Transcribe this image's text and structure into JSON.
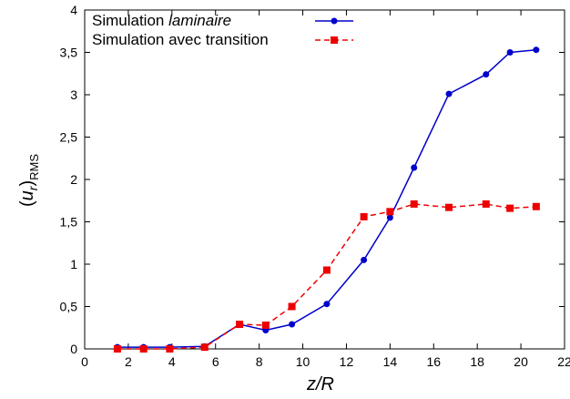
{
  "chart_data": {
    "type": "line",
    "xlabel": "z/R",
    "ylabel": "(u_r)_RMS",
    "xlim": [
      0,
      22
    ],
    "ylim": [
      0,
      4
    ],
    "xticks": [
      0,
      2,
      4,
      6,
      8,
      10,
      12,
      14,
      16,
      18,
      20,
      22
    ],
    "xtick_labels": [
      "0",
      "2",
      "4",
      "6",
      "8",
      "10",
      "12",
      "14",
      "16",
      "18",
      "20",
      "22"
    ],
    "yticks": [
      0,
      0.5,
      1,
      1.5,
      2,
      2.5,
      3,
      3.5,
      4
    ],
    "ytick_labels": [
      "0",
      "0,5",
      "1",
      "1,5",
      "2",
      "2,5",
      "3",
      "3,5",
      "4"
    ],
    "grid": false,
    "legend_position": "top-left",
    "series": [
      {
        "name": "Simulation laminaire",
        "name_plain": "Simulation ",
        "name_italic": "laminaire",
        "color": "#0000cc",
        "line_style": "solid",
        "marker": "circle",
        "x": [
          1.5,
          2.7,
          3.9,
          5.5,
          7.1,
          8.3,
          9.5,
          11.1,
          12.8,
          14.0,
          15.1,
          16.7,
          18.4,
          19.5,
          20.7
        ],
        "y": [
          0.02,
          0.02,
          0.02,
          0.03,
          0.29,
          0.22,
          0.29,
          0.53,
          1.05,
          1.55,
          2.14,
          3.01,
          3.24,
          3.5,
          3.53
        ]
      },
      {
        "name": "Simulation avec transition",
        "name_plain": "Simulation avec transition",
        "name_italic": "",
        "color": "#ee0000",
        "line_style": "dashed",
        "marker": "square",
        "x": [
          1.5,
          2.7,
          3.9,
          5.5,
          7.1,
          8.3,
          9.5,
          11.1,
          12.8,
          14.0,
          15.1,
          16.7,
          18.4,
          19.5,
          20.7
        ],
        "y": [
          0.0,
          0.0,
          0.0,
          0.02,
          0.29,
          0.28,
          0.5,
          0.93,
          1.56,
          1.62,
          1.71,
          1.67,
          1.71,
          1.66,
          1.68
        ]
      }
    ]
  }
}
